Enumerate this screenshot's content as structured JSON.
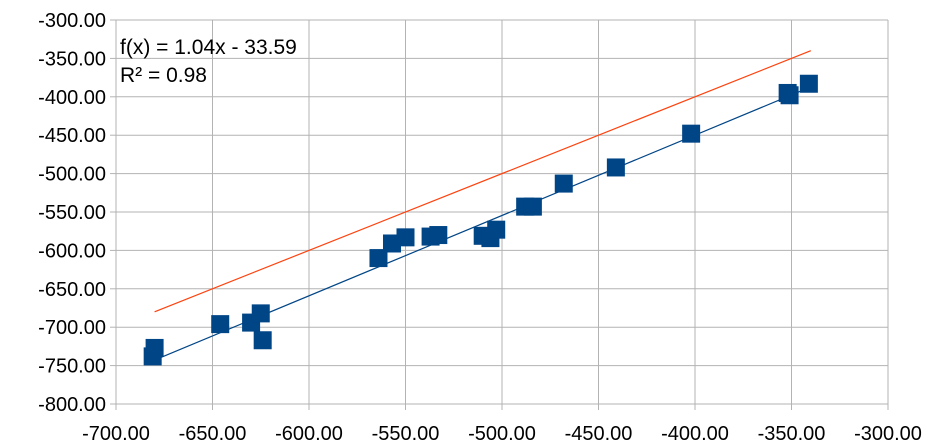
{
  "chart_data": {
    "type": "scatter",
    "xlim": [
      -700,
      -300
    ],
    "ylim": [
      -800,
      -300
    ],
    "x_ticks": [
      "-700.00",
      "-650.00",
      "-600.00",
      "-550.00",
      "-500.00",
      "-450.00",
      "-400.00",
      "-350.00",
      "-300.00"
    ],
    "y_ticks": [
      "-300.00",
      "-350.00",
      "-400.00",
      "-450.00",
      "-500.00",
      "-550.00",
      "-600.00",
      "-650.00",
      "-700.00",
      "-750.00",
      "-800.00"
    ],
    "grid": true,
    "legend": "none",
    "points": [
      {
        "x": -680,
        "y": -727
      },
      {
        "x": -681,
        "y": -738
      },
      {
        "x": -646,
        "y": -696
      },
      {
        "x": -630,
        "y": -694
      },
      {
        "x": -625,
        "y": -682
      },
      {
        "x": -624,
        "y": -717
      },
      {
        "x": -564,
        "y": -610
      },
      {
        "x": -557,
        "y": -591
      },
      {
        "x": -550,
        "y": -583
      },
      {
        "x": -537,
        "y": -582
      },
      {
        "x": -533,
        "y": -580
      },
      {
        "x": -510,
        "y": -581
      },
      {
        "x": -506,
        "y": -584
      },
      {
        "x": -503,
        "y": -573
      },
      {
        "x": -488,
        "y": -543
      },
      {
        "x": -484,
        "y": -543
      },
      {
        "x": -468,
        "y": -513
      },
      {
        "x": -441,
        "y": -492
      },
      {
        "x": -402,
        "y": -448
      },
      {
        "x": -352,
        "y": -395
      },
      {
        "x": -351,
        "y": -398
      },
      {
        "x": -341,
        "y": -383
      }
    ],
    "trendline": {
      "x": [
        -680,
        -341
      ],
      "y": [
        -742.8,
        -388.2
      ]
    },
    "reference_line": {
      "x": [
        -680,
        -340
      ],
      "y": [
        -680,
        -340
      ]
    },
    "trendline_equation": "f(x) = 1.04x - 33.59",
    "r_squared_label": "R² = 0.98",
    "colors": {
      "points": "#004586",
      "trendline": "#004586",
      "reference_line": "#ff420e",
      "grid": "#b3b3b3"
    }
  }
}
